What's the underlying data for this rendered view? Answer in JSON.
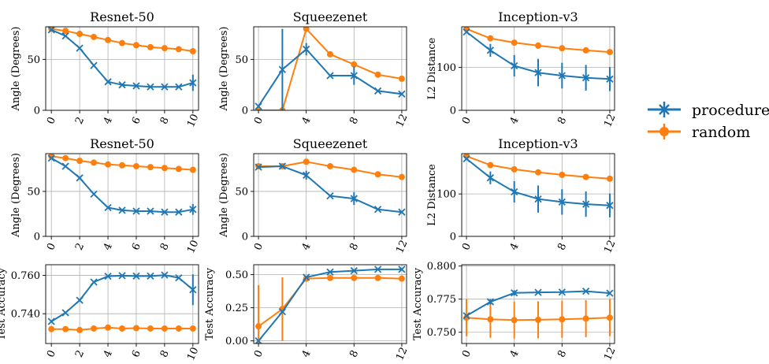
{
  "colors": {
    "procedure": "#1f77b4",
    "random": "#ff7f0e",
    "grid": "#b0b0b0"
  },
  "legend": {
    "placement": "right",
    "entries": [
      {
        "label": "procedure",
        "color": "#1f77b4",
        "marker": "x"
      },
      {
        "label": "random",
        "color": "#ff7f0e",
        "marker": "o"
      }
    ]
  },
  "chart_data": [
    {
      "type": "line",
      "title": "Resnet-50",
      "ylabel": "Angle (Degrees)",
      "grid": true,
      "xlim": [
        -0.4,
        10.4
      ],
      "ylim": [
        0,
        82
      ],
      "xticks": [
        0,
        2,
        4,
        6,
        8,
        10
      ],
      "yticks": [
        0,
        50
      ],
      "series": [
        {
          "name": "procedure",
          "x": [
            0,
            1,
            2,
            3,
            4,
            5,
            6,
            7,
            8,
            9,
            10
          ],
          "y": [
            79,
            73,
            61,
            44,
            28,
            25,
            24,
            23,
            23,
            23,
            27
          ],
          "err": [
            0,
            0,
            0,
            0,
            0,
            0,
            0,
            0,
            0,
            0,
            8
          ]
        },
        {
          "name": "random",
          "x": [
            0,
            1,
            2,
            3,
            4,
            5,
            6,
            7,
            8,
            9,
            10
          ],
          "y": [
            80,
            78,
            75,
            72,
            69,
            66,
            64,
            62,
            61,
            60,
            58
          ],
          "err": [
            0,
            0,
            0,
            0,
            0,
            0,
            0,
            0,
            0,
            0,
            0
          ]
        }
      ]
    },
    {
      "type": "line",
      "title": "Squeezenet",
      "ylabel": "Angle (Degrees)",
      "grid": true,
      "xlim": [
        -0.4,
        12.4
      ],
      "ylim": [
        0,
        82
      ],
      "xticks": [
        0,
        4,
        8,
        12
      ],
      "yticks": [
        0,
        50
      ],
      "series": [
        {
          "name": "procedure",
          "x": [
            0,
            2,
            4,
            6,
            8,
            10,
            12
          ],
          "y": [
            4,
            40,
            60,
            34,
            34,
            19,
            16
          ],
          "err": [
            0,
            40,
            6,
            0,
            9,
            0,
            0
          ]
        },
        {
          "name": "random",
          "x": [
            0,
            2,
            4,
            6,
            8,
            10,
            12
          ],
          "y": [
            0,
            0,
            80,
            55,
            45,
            35,
            31
          ],
          "err": [
            0,
            0,
            0,
            0,
            0,
            0,
            0
          ]
        }
      ]
    },
    {
      "type": "line",
      "title": "Inception-v3",
      "ylabel": "L2 Distance",
      "grid": true,
      "xlim": [
        -0.4,
        12.4
      ],
      "ylim": [
        0,
        195
      ],
      "xticks": [
        0,
        4,
        8,
        12
      ],
      "yticks": [
        0,
        100
      ],
      "series": [
        {
          "name": "procedure",
          "x": [
            0,
            2,
            4,
            6,
            8,
            10,
            12
          ],
          "y": [
            183,
            140,
            104,
            88,
            81,
            76,
            73
          ],
          "err": [
            0,
            15,
            25,
            32,
            30,
            30,
            28
          ]
        },
        {
          "name": "random",
          "x": [
            0,
            2,
            4,
            6,
            8,
            10,
            12
          ],
          "y": [
            190,
            168,
            158,
            151,
            145,
            140,
            136
          ],
          "err": [
            0,
            0,
            0,
            0,
            0,
            0,
            0
          ]
        }
      ]
    },
    {
      "type": "line",
      "title": "Resnet-50",
      "ylabel": "Angle (Degrees)",
      "grid": true,
      "xlim": [
        -0.4,
        10.4
      ],
      "ylim": [
        0,
        92
      ],
      "xticks": [
        0,
        2,
        4,
        6,
        8,
        10
      ],
      "yticks": [
        0,
        50
      ],
      "series": [
        {
          "name": "procedure",
          "x": [
            0,
            1,
            2,
            3,
            4,
            5,
            6,
            7,
            8,
            9,
            10
          ],
          "y": [
            87,
            78,
            65,
            47,
            32,
            29,
            28,
            28,
            27,
            27,
            30
          ],
          "err": [
            0,
            0,
            0,
            0,
            0,
            0,
            0,
            0,
            0,
            0,
            6
          ]
        },
        {
          "name": "random",
          "x": [
            0,
            1,
            2,
            3,
            4,
            5,
            6,
            7,
            8,
            9,
            10
          ],
          "y": [
            89,
            87,
            84,
            82,
            80,
            79,
            78,
            77,
            76,
            75,
            74
          ],
          "err": [
            0,
            0,
            0,
            0,
            0,
            0,
            0,
            0,
            0,
            0,
            0
          ]
        }
      ]
    },
    {
      "type": "line",
      "title": "Squeezenet",
      "ylabel": "Angle (Degrees)",
      "grid": true,
      "xlim": [
        -0.4,
        12.4
      ],
      "ylim": [
        0,
        92
      ],
      "xticks": [
        0,
        4,
        8,
        12
      ],
      "yticks": [
        0,
        50
      ],
      "series": [
        {
          "name": "procedure",
          "x": [
            0,
            2,
            4,
            6,
            8,
            10,
            12
          ],
          "y": [
            77,
            78,
            68,
            45,
            42,
            30,
            27
          ],
          "err": [
            0,
            0,
            5,
            0,
            7,
            0,
            0
          ]
        },
        {
          "name": "random",
          "x": [
            0,
            2,
            4,
            6,
            8,
            10,
            12
          ],
          "y": [
            78,
            78,
            83,
            78,
            74,
            69,
            66
          ],
          "err": [
            0,
            0,
            0,
            0,
            0,
            0,
            0
          ]
        }
      ]
    },
    {
      "type": "line",
      "title": "Inception-v3",
      "ylabel": "L2 Distance",
      "grid": true,
      "xlim": [
        -0.4,
        12.4
      ],
      "ylim": [
        0,
        195
      ],
      "xticks": [
        0,
        4,
        8,
        12
      ],
      "yticks": [
        0,
        100
      ],
      "series": [
        {
          "name": "procedure",
          "x": [
            0,
            2,
            4,
            6,
            8,
            10,
            12
          ],
          "y": [
            183,
            138,
            105,
            88,
            81,
            76,
            73
          ],
          "err": [
            0,
            15,
            25,
            32,
            30,
            30,
            28
          ]
        },
        {
          "name": "random",
          "x": [
            0,
            2,
            4,
            6,
            8,
            10,
            12
          ],
          "y": [
            189,
            168,
            158,
            151,
            145,
            140,
            136
          ],
          "err": [
            0,
            0,
            0,
            0,
            0,
            0,
            0
          ]
        }
      ]
    },
    {
      "type": "line",
      "title": "",
      "ylabel": "Test Accuracy",
      "grid": true,
      "xlim": [
        -0.4,
        10.4
      ],
      "ylim": [
        0.7245,
        0.7655
      ],
      "xticks": [
        0,
        2,
        4,
        6,
        8,
        10
      ],
      "yticks": [
        0.74,
        0.76
      ],
      "yformat": 3,
      "series": [
        {
          "name": "procedure",
          "x": [
            0,
            1,
            2,
            3,
            4,
            5,
            6,
            7,
            8,
            9,
            10
          ],
          "y": [
            0.736,
            0.7405,
            0.747,
            0.7565,
            0.7595,
            0.7598,
            0.7596,
            0.7596,
            0.7601,
            0.7587,
            0.7525
          ],
          "err": [
            0,
            0,
            0,
            0,
            0.0005,
            0.0005,
            0,
            0,
            0,
            0,
            0.008
          ]
        },
        {
          "name": "random",
          "x": [
            0,
            1,
            2,
            3,
            4,
            5,
            6,
            7,
            8,
            9,
            10
          ],
          "y": [
            0.732,
            0.732,
            0.7315,
            0.7323,
            0.7328,
            0.7323,
            0.7325,
            0.7323,
            0.7323,
            0.7323,
            0.7323
          ],
          "err": [
            0,
            0,
            0,
            0,
            0,
            0,
            0,
            0,
            0,
            0,
            0
          ]
        }
      ]
    },
    {
      "type": "line",
      "title": "",
      "ylabel": "Test Accuracy",
      "grid": true,
      "xlim": [
        -0.4,
        12.4
      ],
      "ylim": [
        -0.02,
        0.575
      ],
      "xticks": [
        0,
        4,
        8,
        12
      ],
      "yticks": [
        0.0,
        0.25,
        0.5
      ],
      "yformat": 2,
      "series": [
        {
          "name": "procedure",
          "x": [
            0,
            2,
            4,
            6,
            8,
            10,
            12
          ],
          "y": [
            0.0,
            0.22,
            0.48,
            0.52,
            0.53,
            0.54,
            0.54
          ],
          "err": [
            0,
            0,
            0,
            0,
            0,
            0,
            0
          ]
        },
        {
          "name": "random",
          "x": [
            0,
            2,
            4,
            6,
            8,
            10,
            12
          ],
          "y": [
            0.11,
            0.24,
            0.47,
            0.475,
            0.475,
            0.475,
            0.47
          ],
          "err": [
            0.31,
            0.24,
            0,
            0,
            0,
            0,
            0
          ]
        }
      ]
    },
    {
      "type": "line",
      "title": "",
      "ylabel": "Test Accuracy",
      "grid": true,
      "xlim": [
        -0.4,
        12.4
      ],
      "ylim": [
        0.7415,
        0.801
      ],
      "xticks": [
        0,
        4,
        8,
        12
      ],
      "yticks": [
        0.75,
        0.775,
        0.8
      ],
      "yformat": 3,
      "series": [
        {
          "name": "procedure",
          "x": [
            0,
            2,
            4,
            6,
            8,
            10,
            12
          ],
          "y": [
            0.7625,
            0.773,
            0.7797,
            0.7801,
            0.7803,
            0.781,
            0.7795
          ],
          "err": [
            0,
            0.002,
            0.002,
            0,
            0,
            0,
            0
          ]
        },
        {
          "name": "random",
          "x": [
            0,
            2,
            4,
            6,
            8,
            10,
            12
          ],
          "y": [
            0.761,
            0.7598,
            0.7592,
            0.7594,
            0.7598,
            0.7603,
            0.761
          ],
          "err": [
            0.014,
            0.014,
            0.014,
            0.014,
            0.014,
            0.014,
            0.014
          ]
        }
      ]
    }
  ]
}
